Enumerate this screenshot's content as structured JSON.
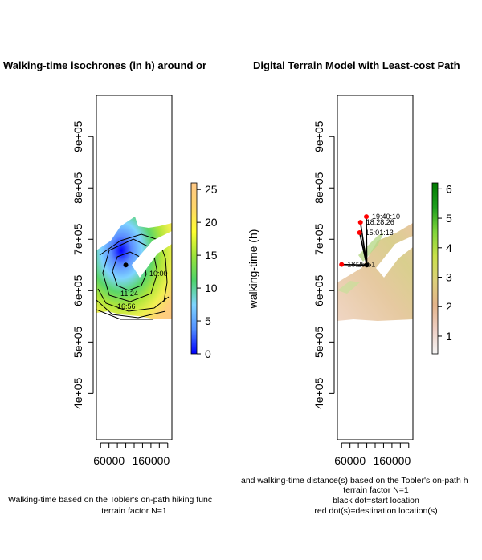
{
  "chart_data": [
    {
      "type": "heatmap",
      "title": "Walking-time isochrones (in h) around or",
      "x_ticks": [
        "60000",
        "160000"
      ],
      "y_ticks": [
        "4e+05",
        "5e+05",
        "6e+05",
        "7e+05",
        "8e+05",
        "9e+05"
      ],
      "xlim": [
        30000,
        210000
      ],
      "ylim": [
        310000,
        980000
      ],
      "colorbar": {
        "label": "walking-time (h)",
        "range": [
          0,
          26
        ],
        "ticks": [
          "0",
          "5",
          "10",
          "15",
          "20",
          "25"
        ],
        "colors": [
          "#0000ff",
          "#4f8cff",
          "#7fd4ff",
          "#4dd36b",
          "#9be33a",
          "#ffff2f",
          "#ffd66a",
          "#ffc886"
        ]
      },
      "contour_labels": [
        "11:24",
        "16:56",
        "10:00"
      ],
      "start_point": {
        "x": 100000,
        "y": 650000
      },
      "caption": [
        "Walking-time based on the Tobler's on-path hiking func",
        "terrain factor N=1"
      ]
    },
    {
      "type": "heatmap",
      "title": "Digital Terrain Model with Least-cost Path",
      "x_ticks": [
        "60000",
        "160000"
      ],
      "y_ticks": [
        "4e+05",
        "5e+05",
        "6e+05",
        "7e+05",
        "8e+05",
        "9e+05"
      ],
      "xlim": [
        30000,
        210000
      ],
      "ylim": [
        310000,
        980000
      ],
      "colorbar": {
        "range": [
          0.4,
          6.2
        ],
        "ticks": [
          "1",
          "2",
          "3",
          "4",
          "5",
          "6"
        ],
        "colors": [
          "#f5f5f5",
          "#eecfc4",
          "#e3b48a",
          "#dcd07a",
          "#c9e04a",
          "#7fd43a",
          "#1e9e1e",
          "#007a00"
        ]
      },
      "start_point": {
        "x": 100000,
        "y": 650000
      },
      "destinations": [
        {
          "x": 40000,
          "y": 651000,
          "time": "18:25:51"
        },
        {
          "x": 83000,
          "y": 713000,
          "time": "15:01:13"
        },
        {
          "x": 85000,
          "y": 733000,
          "time": "18:28:26"
        },
        {
          "x": 99000,
          "y": 744000,
          "time": "19:40:10"
        }
      ],
      "caption": [
        "and walking-time distance(s) based on the Tobler's on-path h",
        "terrain factor N=1",
        "black dot=start location",
        "red dot(s)=destination location(s)"
      ]
    }
  ]
}
